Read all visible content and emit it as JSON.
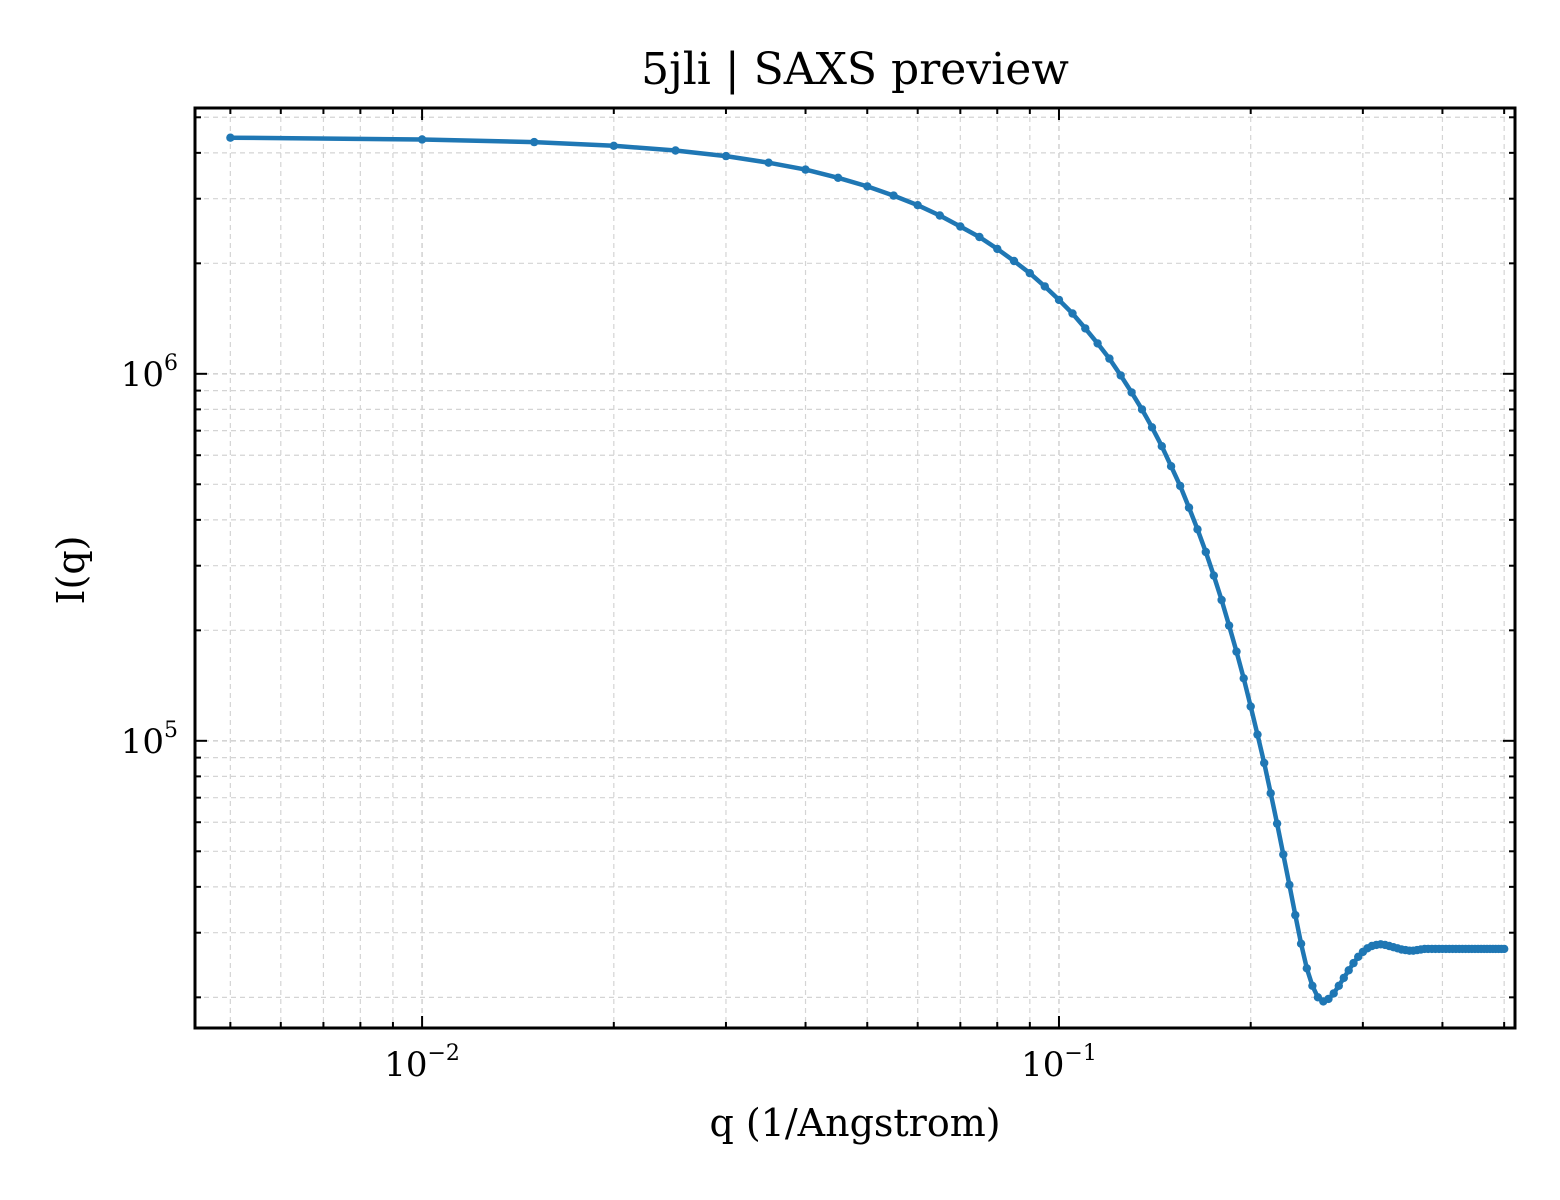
{
  "chart_data": {
    "type": "line",
    "title": "5jli | SAXS preview",
    "xlabel": "q (1/Angstrom)",
    "ylabel": "I(q)",
    "xscale": "log",
    "yscale": "log",
    "xlim": [
      0.0044,
      0.52
    ],
    "ylim": [
      16500,
      5300000
    ],
    "grid": true,
    "x_ticks": [
      {
        "base": "10",
        "exp": "−2",
        "value": 0.01
      },
      {
        "base": "10",
        "exp": "−1",
        "value": 0.1
      }
    ],
    "y_ticks": [
      {
        "base": "10",
        "exp": "5",
        "value": 100000
      },
      {
        "base": "10",
        "exp": "6",
        "value": 1000000
      }
    ],
    "series": [
      {
        "color": "#1f77b4",
        "x": [
          0.005,
          0.01,
          0.015,
          0.02,
          0.025,
          0.03,
          0.035,
          0.04,
          0.045,
          0.05,
          0.055,
          0.06,
          0.065,
          0.07,
          0.075,
          0.08,
          0.085,
          0.09,
          0.095,
          0.1,
          0.105,
          0.11,
          0.115,
          0.12,
          0.125,
          0.13,
          0.135,
          0.14,
          0.145,
          0.15,
          0.155,
          0.16,
          0.165,
          0.17,
          0.175,
          0.18,
          0.185,
          0.19,
          0.195,
          0.2,
          0.205,
          0.21,
          0.215,
          0.22,
          0.225,
          0.23,
          0.235,
          0.24,
          0.245,
          0.25,
          0.255,
          0.26,
          0.265,
          0.27,
          0.275,
          0.28,
          0.285,
          0.29,
          0.295,
          0.3,
          0.305,
          0.31,
          0.315,
          0.32,
          0.325,
          0.33,
          0.335,
          0.34,
          0.345,
          0.35,
          0.355,
          0.36,
          0.365,
          0.37,
          0.375,
          0.38,
          0.385,
          0.39,
          0.395,
          0.4,
          0.405,
          0.41,
          0.415,
          0.42,
          0.425,
          0.43,
          0.435,
          0.44,
          0.445,
          0.45,
          0.455,
          0.46,
          0.465,
          0.47,
          0.475,
          0.48,
          0.485,
          0.49,
          0.495,
          0.5
        ],
        "y": [
          4400000,
          4350000,
          4280000,
          4180000,
          4060000,
          3920000,
          3760000,
          3600000,
          3420000,
          3240000,
          3060000,
          2880000,
          2700000,
          2520000,
          2360000,
          2190000,
          2030000,
          1880000,
          1730000,
          1590000,
          1460000,
          1330000,
          1210000,
          1100000,
          990000,
          890000,
          800000,
          715000,
          635000,
          560000,
          495000,
          432000,
          377000,
          327000,
          282000,
          242000,
          206000,
          175000,
          148000,
          124000,
          104000,
          87000,
          72000,
          59500,
          49000,
          40500,
          33500,
          28000,
          24000,
          21500,
          20000,
          19500,
          19800,
          20500,
          21500,
          22600,
          23700,
          24800,
          25800,
          26600,
          27200,
          27600,
          27800,
          27900,
          27800,
          27600,
          27400,
          27200,
          27000,
          26900,
          26800,
          26800,
          26900,
          27000,
          27100,
          27100,
          27100,
          27100,
          27100,
          27100,
          27100,
          27100,
          27100,
          27100,
          27100,
          27100,
          27100,
          27100,
          27100,
          27100,
          27100,
          27100,
          27100,
          27100,
          27100,
          27100,
          27100,
          27100,
          27100,
          27100
        ]
      }
    ]
  }
}
